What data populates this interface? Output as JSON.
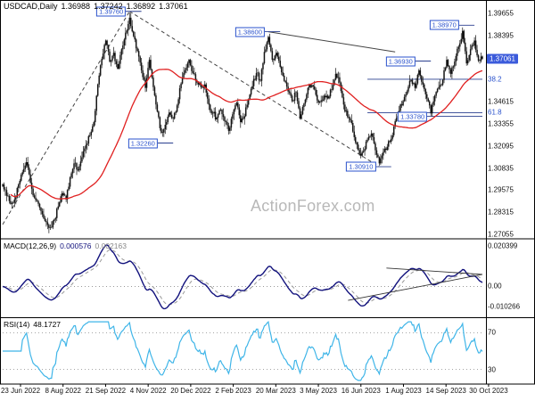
{
  "chart_data": {
    "type": "candlestick",
    "title": "USDCAD,Daily",
    "symbol": "USDCAD",
    "timeframe": "Daily",
    "ohlc_display": {
      "open": "1.36988",
      "high": "1.37242",
      "low": "1.36892",
      "close": "1.37061"
    },
    "watermark": "ActionForex.com",
    "x_labels": [
      "23 Jun 2022",
      "8 Aug 2022",
      "21 Sep 2022",
      "4 Nov 2022",
      "20 Dec 2022",
      "2 Feb 2023",
      "20 Mar 2023",
      "3 May 2023",
      "16 Jun 2023",
      "1 Aug 2023",
      "14 Sep 2023",
      "30 Oct 2023"
    ],
    "price_axis": {
      "min": 1.27055,
      "max": 1.399,
      "ticks": [
        {
          "text": "1.39655",
          "value": 1.39655
        },
        {
          "text": "1.38395",
          "value": 1.38395
        },
        {
          "text": "1.34615",
          "value": 1.34615
        },
        {
          "text": "1.33355",
          "value": 1.33355
        },
        {
          "text": "1.32095",
          "value": 1.32095
        },
        {
          "text": "1.30835",
          "value": 1.30835
        },
        {
          "text": "1.29575",
          "value": 1.29575
        },
        {
          "text": "1.28315",
          "value": 1.28315
        },
        {
          "text": "1.27055",
          "value": 1.27055
        }
      ],
      "current": "1.37061",
      "current_value": 1.37061
    },
    "sample_interval_trading_days": 3,
    "close_path": [
      1.299,
      1.2925,
      1.288,
      1.2905,
      1.299,
      1.306,
      1.3117,
      1.3,
      1.2915,
      1.288,
      1.282,
      1.2775,
      1.2745,
      1.279,
      1.2865,
      1.294,
      1.2905,
      1.303,
      1.311,
      1.307,
      1.3145,
      1.3215,
      1.327,
      1.3345,
      1.356,
      1.3705,
      1.381,
      1.369,
      1.374,
      1.365,
      1.376,
      1.3855,
      1.394,
      1.3835,
      1.375,
      1.364,
      1.354,
      1.37,
      1.3545,
      1.3405,
      1.3285,
      1.333,
      1.34,
      1.3365,
      1.344,
      1.3565,
      1.364,
      1.37,
      1.3625,
      1.357,
      1.3545,
      1.356,
      1.3445,
      1.3395,
      1.337,
      1.3415,
      1.335,
      1.3295,
      1.339,
      1.3455,
      1.3345,
      1.338,
      1.3475,
      1.355,
      1.3625,
      1.358,
      1.3745,
      1.383,
      1.37,
      1.374,
      1.366,
      1.358,
      1.352,
      1.3465,
      1.3515,
      1.3365,
      1.345,
      1.354,
      1.3555,
      1.35,
      1.346,
      1.3495,
      1.348,
      1.353,
      1.362,
      1.357,
      1.3445,
      1.3375,
      1.334,
      1.323,
      1.3165,
      1.318,
      1.3245,
      1.328,
      1.3185,
      1.311,
      1.3175,
      1.3205,
      1.325,
      1.335,
      1.341,
      1.3465,
      1.352,
      1.3585,
      1.354,
      1.364,
      1.356,
      1.348,
      1.3395,
      1.3495,
      1.3545,
      1.3585,
      1.37,
      1.362,
      1.369,
      1.3775,
      1.3865,
      1.368,
      1.376,
      1.381,
      1.3695,
      1.3706
    ],
    "swing_labels": [
      {
        "text": "1.39760",
        "idx": 32,
        "price": 1.3976
      },
      {
        "text": "1.32260",
        "idx": 40,
        "price": 1.3226
      },
      {
        "text": "1.38600",
        "idx": 67,
        "price": 1.386
      },
      {
        "text": "1.30910",
        "idx": 95,
        "price": 1.3091
      },
      {
        "text": "1.36930",
        "idx": 105,
        "price": 1.3693
      },
      {
        "text": "1.33780",
        "idx": 108,
        "price": 1.3378,
        "extend": true
      },
      {
        "text": "1.38970",
        "idx": 116,
        "price": 1.3897
      }
    ],
    "trendlines": [
      {
        "i1": 0,
        "p1": 1.2762,
        "i2": 32,
        "p2": 1.3976,
        "dashed": true
      },
      {
        "i1": 32,
        "p1": 1.3976,
        "i2": 95,
        "p2": 1.3091,
        "dashed": true
      },
      {
        "i1": 67,
        "p1": 1.386,
        "i2": 99,
        "p2": 1.3745,
        "dashed": false
      }
    ],
    "fib_levels": [
      {
        "label": "38.2",
        "price": 1.35891,
        "from_idx": 92
      },
      {
        "label": "61.8",
        "price": 1.3399,
        "from_idx": 92
      }
    ],
    "macd": {
      "label": "MACD(12,26,9)",
      "value": "0.000576",
      "signal_value": "0.002163",
      "fast": 12,
      "slow": 26,
      "signal": 9,
      "axis": {
        "min": -0.015,
        "max": 0.0225,
        "ticks": [
          {
            "text": "0.020399",
            "value": 0.020399
          },
          {
            "text": "0.00",
            "value": 0
          },
          {
            "text": "-0.010266",
            "value": -0.010266
          }
        ]
      },
      "wedge": [
        {
          "f1": 0.72,
          "v1": -0.007,
          "f2": 1.0,
          "v2": 0.006
        },
        {
          "f1": 0.8,
          "v1": 0.0092,
          "f2": 1.0,
          "v2": 0.006
        }
      ]
    },
    "rsi": {
      "label": "RSI(14)",
      "value": "48.1727",
      "period": 14,
      "axis": {
        "min": 15,
        "max": 85,
        "ticks": [
          {
            "text": "70",
            "value": 70
          },
          {
            "text": "30",
            "value": 30
          }
        ]
      }
    },
    "colors": {
      "candle": "#151515",
      "ma": "#e02020",
      "macd_line": "#12127d",
      "macd_signal": "#999999",
      "rsi_line": "#3fb5e8",
      "label_blue": "#2a52cc",
      "current_bg": "#3b5bdb",
      "level_line": "#2a3f8f",
      "trendline": "#444444",
      "watermark": "#b8b8b8"
    }
  }
}
